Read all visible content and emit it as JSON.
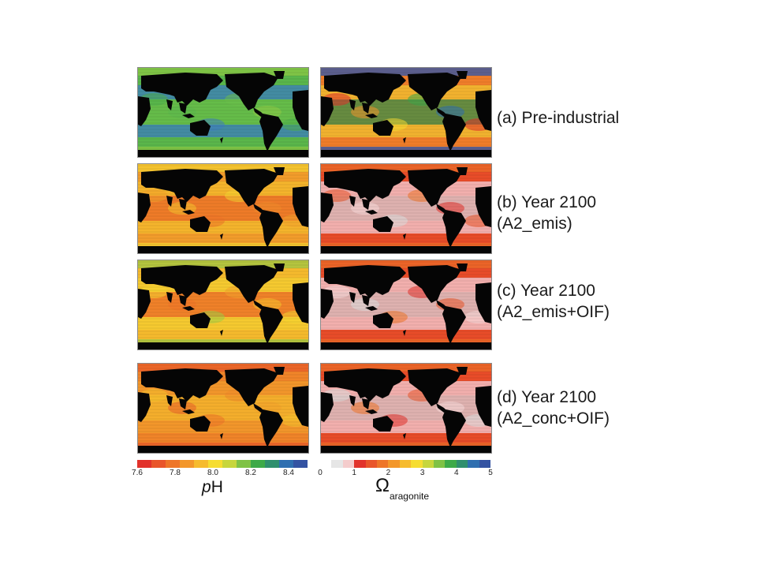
{
  "chart_data": [
    {
      "type": "heatmap",
      "variable": "pH",
      "rows": [
        {
          "label": [
            "(a) Pre-industrial"
          ],
          "ocean_palette": [
            "#4fae4a",
            "#5db84c",
            "#3f7fc0",
            "#6cc04a",
            "#8fcb45"
          ]
        },
        {
          "label": [
            "(b) Year 2100",
            "(A2_emis)"
          ],
          "ocean_palette": [
            "#f08a2a",
            "#f3a22c",
            "#f6c22e",
            "#ee7528",
            "#f6d531"
          ]
        },
        {
          "label": [
            "(c) Year 2100",
            "(A2_emis+OIF)"
          ],
          "ocean_palette": [
            "#f3a22c",
            "#f6c22e",
            "#f6d531",
            "#ee7528",
            "#9fcf45"
          ]
        },
        {
          "label": [
            "(d) Year 2100",
            "(A2_conc+OIF)"
          ],
          "ocean_palette": [
            "#ee7528",
            "#f08a2a",
            "#f3a22c",
            "#f6c22e",
            "#e9612a"
          ]
        }
      ],
      "colorbar": {
        "title_italic": "p",
        "title_rest": "H",
        "ticks": [
          "7.6",
          "7.8",
          "8.0",
          "8.2",
          "8.4"
        ],
        "tick_values": [
          7.6,
          7.8,
          8.0,
          8.2,
          8.4
        ],
        "range": [
          7.6,
          8.5
        ],
        "colors": [
          "#e2322b",
          "#e9552a",
          "#ee7528",
          "#f3972b",
          "#f6bb2e",
          "#f6dd31",
          "#c7d63c",
          "#7fc245",
          "#3daa48",
          "#2f8f6e",
          "#2f6fb0",
          "#3453a2"
        ]
      }
    },
    {
      "type": "heatmap",
      "variable": "Omega_aragonite",
      "rows": [
        {
          "label": [
            "(a) Pre-industrial"
          ],
          "ocean_palette": [
            "#e2322b",
            "#f3972b",
            "#f6dd31",
            "#3daa48",
            "#2f6fb0"
          ]
        },
        {
          "label": [
            "(b) Year 2100",
            "(A2_emis)"
          ],
          "ocean_palette": [
            "#e2322b",
            "#e9552a",
            "#f7d9d9",
            "#dcdcdc",
            "#ee7528"
          ]
        },
        {
          "label": [
            "(c) Year 2100",
            "(A2_emis+OIF)"
          ],
          "ocean_palette": [
            "#e2322b",
            "#e9552a",
            "#f7d9d9",
            "#dcdcdc",
            "#ee7528"
          ]
        },
        {
          "label": [
            "(d) Year 2100",
            "(A2_conc+OIF)"
          ],
          "ocean_palette": [
            "#e2322b",
            "#e9552a",
            "#f7d9d9",
            "#dcdcdc",
            "#ee7528"
          ]
        }
      ],
      "colorbar": {
        "title_main": "Ω",
        "title_sub": "aragonite",
        "ticks": [
          "0",
          "1",
          "2",
          "3",
          "4",
          "5"
        ],
        "tick_values": [
          0,
          1,
          2,
          3,
          4,
          5
        ],
        "range": [
          0,
          5
        ],
        "colors": [
          "#ffffff",
          "#e6e6e6",
          "#f4cccc",
          "#e2322b",
          "#e9552a",
          "#ee7528",
          "#f3972b",
          "#f6bb2e",
          "#f6dd31",
          "#c7d63c",
          "#7fc245",
          "#3daa48",
          "#2f8f6e",
          "#2f6fb0",
          "#3453a2"
        ]
      }
    }
  ]
}
